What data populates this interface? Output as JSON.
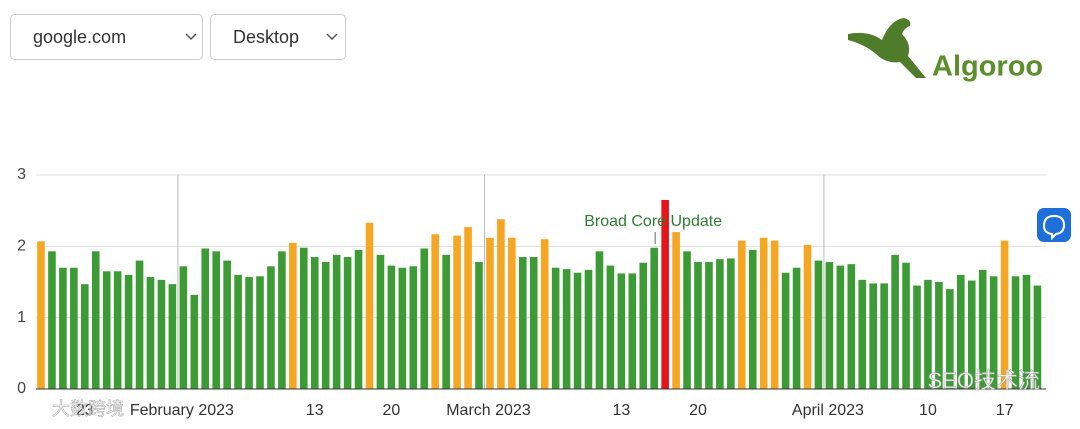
{
  "controls": {
    "site": "google.com",
    "device": "Desktop"
  },
  "logo": "Algoroo",
  "watermarks": [
    "SEO技术流",
    "大数跨境"
  ],
  "chart_data": {
    "type": "bar",
    "categories": [
      null,
      null,
      null,
      null,
      "23",
      null,
      null,
      null,
      null,
      null,
      null,
      null,
      null,
      "February 2023",
      null,
      null,
      null,
      null,
      null,
      null,
      null,
      null,
      null,
      null,
      null,
      "13",
      null,
      null,
      null,
      null,
      null,
      null,
      "20",
      null,
      null,
      null,
      null,
      null,
      null,
      null,
      null,
      "March 2023",
      null,
      null,
      null,
      null,
      null,
      null,
      null,
      null,
      null,
      null,
      null,
      "13",
      null,
      null,
      null,
      null,
      null,
      null,
      "20",
      null,
      null,
      null,
      null,
      null,
      null,
      null,
      null,
      null,
      null,
      null,
      "April 2023",
      null,
      null,
      null,
      null,
      null,
      null,
      null,
      null,
      "10",
      null,
      null,
      null,
      null,
      null,
      null,
      "17",
      null,
      null,
      null
    ],
    "values": [
      2.07,
      1.93,
      1.7,
      1.7,
      1.47,
      1.93,
      1.65,
      1.65,
      1.6,
      1.8,
      1.57,
      1.53,
      1.47,
      1.72,
      1.32,
      1.97,
      1.93,
      1.8,
      1.6,
      1.57,
      1.58,
      1.72,
      1.93,
      2.05,
      1.98,
      1.85,
      1.78,
      1.88,
      1.85,
      1.95,
      2.33,
      1.88,
      1.73,
      1.7,
      1.72,
      1.97,
      2.17,
      1.88,
      2.15,
      2.27,
      1.78,
      2.12,
      2.38,
      2.12,
      1.85,
      1.85,
      2.1,
      1.7,
      1.68,
      1.63,
      1.67,
      1.93,
      1.73,
      1.62,
      1.62,
      1.77,
      1.98,
      2.65,
      2.2,
      1.93,
      1.78,
      1.78,
      1.82,
      1.83,
      2.08,
      1.95,
      2.12,
      2.08,
      1.63,
      1.7,
      2.02,
      1.8,
      1.78,
      1.73,
      1.75,
      1.53,
      1.48,
      1.48,
      1.88,
      1.77,
      1.45,
      1.53,
      1.5,
      1.4,
      1.6,
      1.52,
      1.67,
      1.58,
      2.08,
      1.58,
      1.6,
      1.45
    ],
    "colors": [
      "#f5a623",
      "#3d9b35",
      "#3d9b35",
      "#3d9b35",
      "#3d9b35",
      "#3d9b35",
      "#3d9b35",
      "#3d9b35",
      "#3d9b35",
      "#3d9b35",
      "#3d9b35",
      "#3d9b35",
      "#3d9b35",
      "#3d9b35",
      "#3d9b35",
      "#3d9b35",
      "#3d9b35",
      "#3d9b35",
      "#3d9b35",
      "#3d9b35",
      "#3d9b35",
      "#3d9b35",
      "#3d9b35",
      "#f5a623",
      "#3d9b35",
      "#3d9b35",
      "#3d9b35",
      "#3d9b35",
      "#3d9b35",
      "#3d9b35",
      "#f5a623",
      "#3d9b35",
      "#3d9b35",
      "#3d9b35",
      "#3d9b35",
      "#3d9b35",
      "#f5a623",
      "#3d9b35",
      "#f5a623",
      "#f5a623",
      "#3d9b35",
      "#f5a623",
      "#f5a623",
      "#f5a623",
      "#3d9b35",
      "#3d9b35",
      "#f5a623",
      "#3d9b35",
      "#3d9b35",
      "#3d9b35",
      "#3d9b35",
      "#3d9b35",
      "#3d9b35",
      "#3d9b35",
      "#3d9b35",
      "#3d9b35",
      "#3d9b35",
      "#e8141c",
      "#f5a623",
      "#3d9b35",
      "#3d9b35",
      "#3d9b35",
      "#3d9b35",
      "#3d9b35",
      "#f5a623",
      "#3d9b35",
      "#f5a623",
      "#f5a623",
      "#3d9b35",
      "#3d9b35",
      "#f5a623",
      "#3d9b35",
      "#3d9b35",
      "#3d9b35",
      "#3d9b35",
      "#3d9b35",
      "#3d9b35",
      "#3d9b35",
      "#3d9b35",
      "#3d9b35",
      "#3d9b35",
      "#3d9b35",
      "#3d9b35",
      "#3d9b35",
      "#3d9b35",
      "#3d9b35",
      "#3d9b35",
      "#3d9b35",
      "#f5a623",
      "#3d9b35",
      "#3d9b35",
      "#3d9b35"
    ],
    "annotations": [
      {
        "text": "Broad Core Update",
        "x_index": 57
      }
    ],
    "ylim": [
      0,
      3
    ],
    "yticks": [
      0,
      1,
      2,
      3
    ],
    "grid": true
  }
}
